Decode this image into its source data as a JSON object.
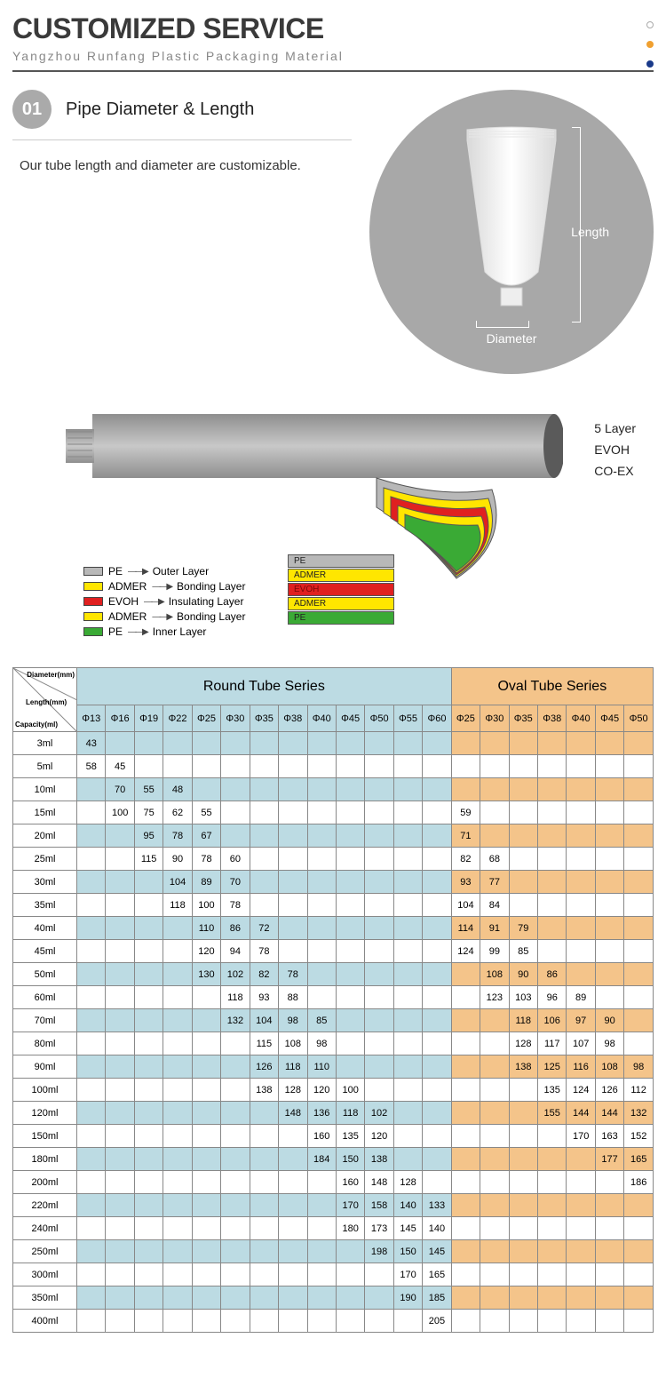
{
  "header": {
    "title": "CUSTOMIZED SERVICE",
    "subtitle": "Yangzhou Runfang Plastic Packaging Material"
  },
  "dots": {
    "d1_border": "#aaaaaa",
    "d2_color": "#f0a030",
    "d3_color": "#1a3a8a"
  },
  "section01": {
    "badge": "01",
    "title": "Pipe Diameter & Length",
    "body": "Our tube length and diameter are customizable.",
    "label_length": "Length",
    "label_diameter": "Diameter",
    "circle_bg": "#a8a8a8"
  },
  "layer_diagram": {
    "right_labels": [
      "5 Layer",
      "EVOH",
      "CO-EX"
    ],
    "legend": [
      {
        "name": "PE",
        "color": "#b8b8b8",
        "desc": "Outer Layer"
      },
      {
        "name": "ADMER",
        "color": "#ffe600",
        "desc": "Bonding Layer"
      },
      {
        "name": "EVOH",
        "color": "#e02020",
        "desc": "Insulating Layer"
      },
      {
        "name": "ADMER",
        "color": "#ffe600",
        "desc": "Bonding Layer"
      },
      {
        "name": "PE",
        "color": "#3aaa35",
        "desc": "Inner Layer"
      }
    ],
    "band_labels": [
      {
        "name": "PE",
        "bg": "#b8b8b8",
        "text_color": "#222"
      },
      {
        "name": "ADMER",
        "bg": "#ffe600",
        "text_color": "#222"
      },
      {
        "name": "EVOH",
        "bg": "#e02020",
        "text_color": "#7a0a0a"
      },
      {
        "name": "ADMER",
        "bg": "#ffe600",
        "text_color": "#222"
      },
      {
        "name": "PE",
        "bg": "#3aaa35",
        "text_color": "#222"
      }
    ]
  },
  "table": {
    "corner": {
      "top": "Diameter(mm)",
      "mid": "Length(mm)",
      "bot": "Capacity(ml)"
    },
    "header_round": "Round Tube Series",
    "header_oval": "Oval Tube Series",
    "round_diameters": [
      "Φ13",
      "Φ16",
      "Φ19",
      "Φ22",
      "Φ25",
      "Φ30",
      "Φ35",
      "Φ38",
      "Φ40",
      "Φ45",
      "Φ50",
      "Φ55",
      "Φ60"
    ],
    "oval_diameters": [
      "Φ25",
      "Φ30",
      "Φ35",
      "Φ38",
      "Φ40",
      "Φ45",
      "Φ50"
    ],
    "colors": {
      "round_bg": "#bcdbe3",
      "oval_bg": "#f4c48a",
      "border": "#888888"
    },
    "rows": [
      {
        "cap": "3ml",
        "r": [
          "43",
          "",
          "",
          "",
          "",
          "",
          "",
          "",
          "",
          "",
          "",
          "",
          ""
        ],
        "o": [
          "",
          "",
          "",
          "",
          "",
          "",
          ""
        ]
      },
      {
        "cap": "5ml",
        "r": [
          "58",
          "45",
          "",
          "",
          "",
          "",
          "",
          "",
          "",
          "",
          "",
          "",
          ""
        ],
        "o": [
          "",
          "",
          "",
          "",
          "",
          "",
          ""
        ]
      },
      {
        "cap": "10ml",
        "r": [
          "",
          "70",
          "55",
          "48",
          "",
          "",
          "",
          "",
          "",
          "",
          "",
          "",
          ""
        ],
        "o": [
          "",
          "",
          "",
          "",
          "",
          "",
          ""
        ]
      },
      {
        "cap": "15ml",
        "r": [
          "",
          "100",
          "75",
          "62",
          "55",
          "",
          "",
          "",
          "",
          "",
          "",
          "",
          ""
        ],
        "o": [
          "59",
          "",
          "",
          "",
          "",
          "",
          ""
        ]
      },
      {
        "cap": "20ml",
        "r": [
          "",
          "",
          "95",
          "78",
          "67",
          "",
          "",
          "",
          "",
          "",
          "",
          "",
          ""
        ],
        "o": [
          "71",
          "",
          "",
          "",
          "",
          "",
          ""
        ]
      },
      {
        "cap": "25ml",
        "r": [
          "",
          "",
          "115",
          "90",
          "78",
          "60",
          "",
          "",
          "",
          "",
          "",
          "",
          ""
        ],
        "o": [
          "82",
          "68",
          "",
          "",
          "",
          "",
          ""
        ]
      },
      {
        "cap": "30ml",
        "r": [
          "",
          "",
          "",
          "104",
          "89",
          "70",
          "",
          "",
          "",
          "",
          "",
          "",
          ""
        ],
        "o": [
          "93",
          "77",
          "",
          "",
          "",
          "",
          ""
        ]
      },
      {
        "cap": "35ml",
        "r": [
          "",
          "",
          "",
          "118",
          "100",
          "78",
          "",
          "",
          "",
          "",
          "",
          "",
          ""
        ],
        "o": [
          "104",
          "84",
          "",
          "",
          "",
          "",
          ""
        ]
      },
      {
        "cap": "40ml",
        "r": [
          "",
          "",
          "",
          "",
          "110",
          "86",
          "72",
          "",
          "",
          "",
          "",
          "",
          ""
        ],
        "o": [
          "114",
          "91",
          "79",
          "",
          "",
          "",
          ""
        ]
      },
      {
        "cap": "45ml",
        "r": [
          "",
          "",
          "",
          "",
          "120",
          "94",
          "78",
          "",
          "",
          "",
          "",
          "",
          ""
        ],
        "o": [
          "124",
          "99",
          "85",
          "",
          "",
          "",
          ""
        ]
      },
      {
        "cap": "50ml",
        "r": [
          "",
          "",
          "",
          "",
          "130",
          "102",
          "82",
          "78",
          "",
          "",
          "",
          "",
          ""
        ],
        "o": [
          "",
          "108",
          "90",
          "86",
          "",
          "",
          ""
        ]
      },
      {
        "cap": "60ml",
        "r": [
          "",
          "",
          "",
          "",
          "",
          "118",
          "93",
          "88",
          "",
          "",
          "",
          "",
          ""
        ],
        "o": [
          "",
          "123",
          "103",
          "96",
          "89",
          "",
          ""
        ]
      },
      {
        "cap": "70ml",
        "r": [
          "",
          "",
          "",
          "",
          "",
          "132",
          "104",
          "98",
          "85",
          "",
          "",
          "",
          ""
        ],
        "o": [
          "",
          "",
          "118",
          "106",
          "97",
          "90",
          ""
        ]
      },
      {
        "cap": "80ml",
        "r": [
          "",
          "",
          "",
          "",
          "",
          "",
          "115",
          "108",
          "98",
          "",
          "",
          "",
          ""
        ],
        "o": [
          "",
          "",
          "128",
          "117",
          "107",
          "98",
          ""
        ]
      },
      {
        "cap": "90ml",
        "r": [
          "",
          "",
          "",
          "",
          "",
          "",
          "126",
          "118",
          "110",
          "",
          "",
          "",
          ""
        ],
        "o": [
          "",
          "",
          "138",
          "125",
          "116",
          "108",
          "98"
        ]
      },
      {
        "cap": "100ml",
        "r": [
          "",
          "",
          "",
          "",
          "",
          "",
          "138",
          "128",
          "120",
          "100",
          "",
          "",
          ""
        ],
        "o": [
          "",
          "",
          "",
          "135",
          "124",
          "126",
          "112"
        ]
      },
      {
        "cap": "120ml",
        "r": [
          "",
          "",
          "",
          "",
          "",
          "",
          "",
          "148",
          "136",
          "118",
          "102",
          "",
          ""
        ],
        "o": [
          "",
          "",
          "",
          "155",
          "144",
          "144",
          "132"
        ]
      },
      {
        "cap": "150ml",
        "r": [
          "",
          "",
          "",
          "",
          "",
          "",
          "",
          "",
          "160",
          "135",
          "120",
          "",
          ""
        ],
        "o": [
          "",
          "",
          "",
          "",
          "170",
          "163",
          "152"
        ]
      },
      {
        "cap": "180ml",
        "r": [
          "",
          "",
          "",
          "",
          "",
          "",
          "",
          "",
          "184",
          "150",
          "138",
          "",
          ""
        ],
        "o": [
          "",
          "",
          "",
          "",
          "",
          "177",
          "165"
        ]
      },
      {
        "cap": "200ml",
        "r": [
          "",
          "",
          "",
          "",
          "",
          "",
          "",
          "",
          "",
          "160",
          "148",
          "128",
          ""
        ],
        "o": [
          "",
          "",
          "",
          "",
          "",
          "",
          "186"
        ]
      },
      {
        "cap": "220ml",
        "r": [
          "",
          "",
          "",
          "",
          "",
          "",
          "",
          "",
          "",
          "170",
          "158",
          "140",
          "133"
        ],
        "o": [
          "",
          "",
          "",
          "",
          "",
          "",
          ""
        ]
      },
      {
        "cap": "240ml",
        "r": [
          "",
          "",
          "",
          "",
          "",
          "",
          "",
          "",
          "",
          "180",
          "173",
          "145",
          "140"
        ],
        "o": [
          "",
          "",
          "",
          "",
          "",
          "",
          ""
        ]
      },
      {
        "cap": "250ml",
        "r": [
          "",
          "",
          "",
          "",
          "",
          "",
          "",
          "",
          "",
          "",
          "198",
          "150",
          "145"
        ],
        "o": [
          "",
          "",
          "",
          "",
          "",
          "",
          ""
        ]
      },
      {
        "cap": "300ml",
        "r": [
          "",
          "",
          "",
          "",
          "",
          "",
          "",
          "",
          "",
          "",
          "",
          "170",
          "165"
        ],
        "o": [
          "",
          "",
          "",
          "",
          "",
          "",
          ""
        ]
      },
      {
        "cap": "350ml",
        "r": [
          "",
          "",
          "",
          "",
          "",
          "",
          "",
          "",
          "",
          "",
          "",
          "190",
          "185"
        ],
        "o": [
          "",
          "",
          "",
          "",
          "",
          "",
          ""
        ]
      },
      {
        "cap": "400ml",
        "r": [
          "",
          "",
          "",
          "",
          "",
          "",
          "",
          "",
          "",
          "",
          "",
          "",
          "205"
        ],
        "o": [
          "",
          "",
          "",
          "",
          "",
          "",
          ""
        ]
      }
    ]
  }
}
